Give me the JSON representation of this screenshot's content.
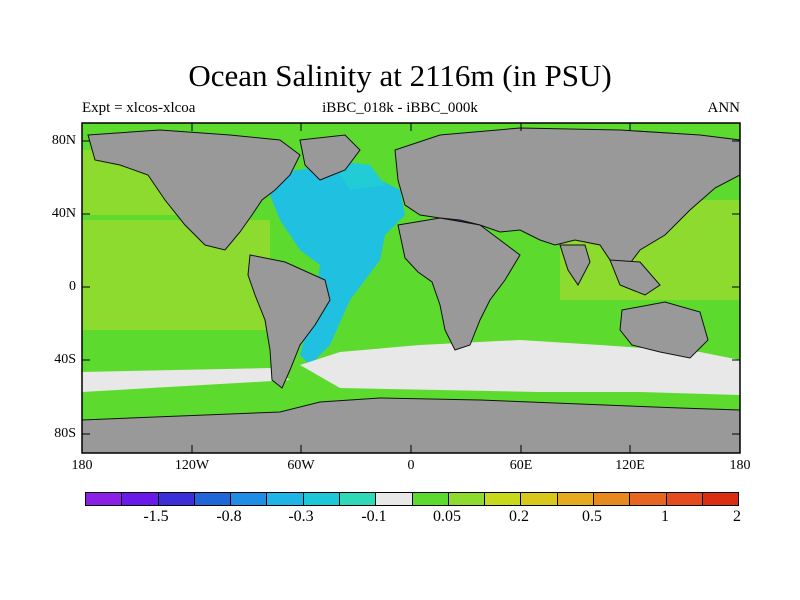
{
  "title": "Ocean Salinity at 2116m (in PSU)",
  "subtitle_left": "Expt = xlcos-xlcoa",
  "subtitle_center": "iBBC_018k - iBBC_000k",
  "subtitle_right": "ANN",
  "map": {
    "lon_range": [
      -180,
      180
    ],
    "lat_range": [
      -90,
      90
    ],
    "lat_labels": [
      "80N",
      "40N",
      "0",
      "40S",
      "80S"
    ],
    "lon_labels": [
      "180",
      "120W",
      "60W",
      "0",
      "60E",
      "120E",
      "180"
    ],
    "land_color": "#999999",
    "legend_position": "bottom"
  },
  "colorbar": {
    "colors": [
      "#8C1FE6",
      "#6A1AE8",
      "#3C2ED9",
      "#1F66D9",
      "#1F8CE6",
      "#1FB4E6",
      "#1CC8D8",
      "#2ED9B8",
      "#E8E8E8",
      "#5CDB2E",
      "#8CDB2E",
      "#C8D81C",
      "#D8C81C",
      "#E6AA1F",
      "#E68A1F",
      "#E6661F",
      "#E64A1F",
      "#D92E0F"
    ],
    "labels": [
      "-1.5",
      "-0.8",
      "-0.3",
      "-0.1",
      "0.05",
      "0.2",
      "0.5",
      "1",
      "2"
    ]
  }
}
